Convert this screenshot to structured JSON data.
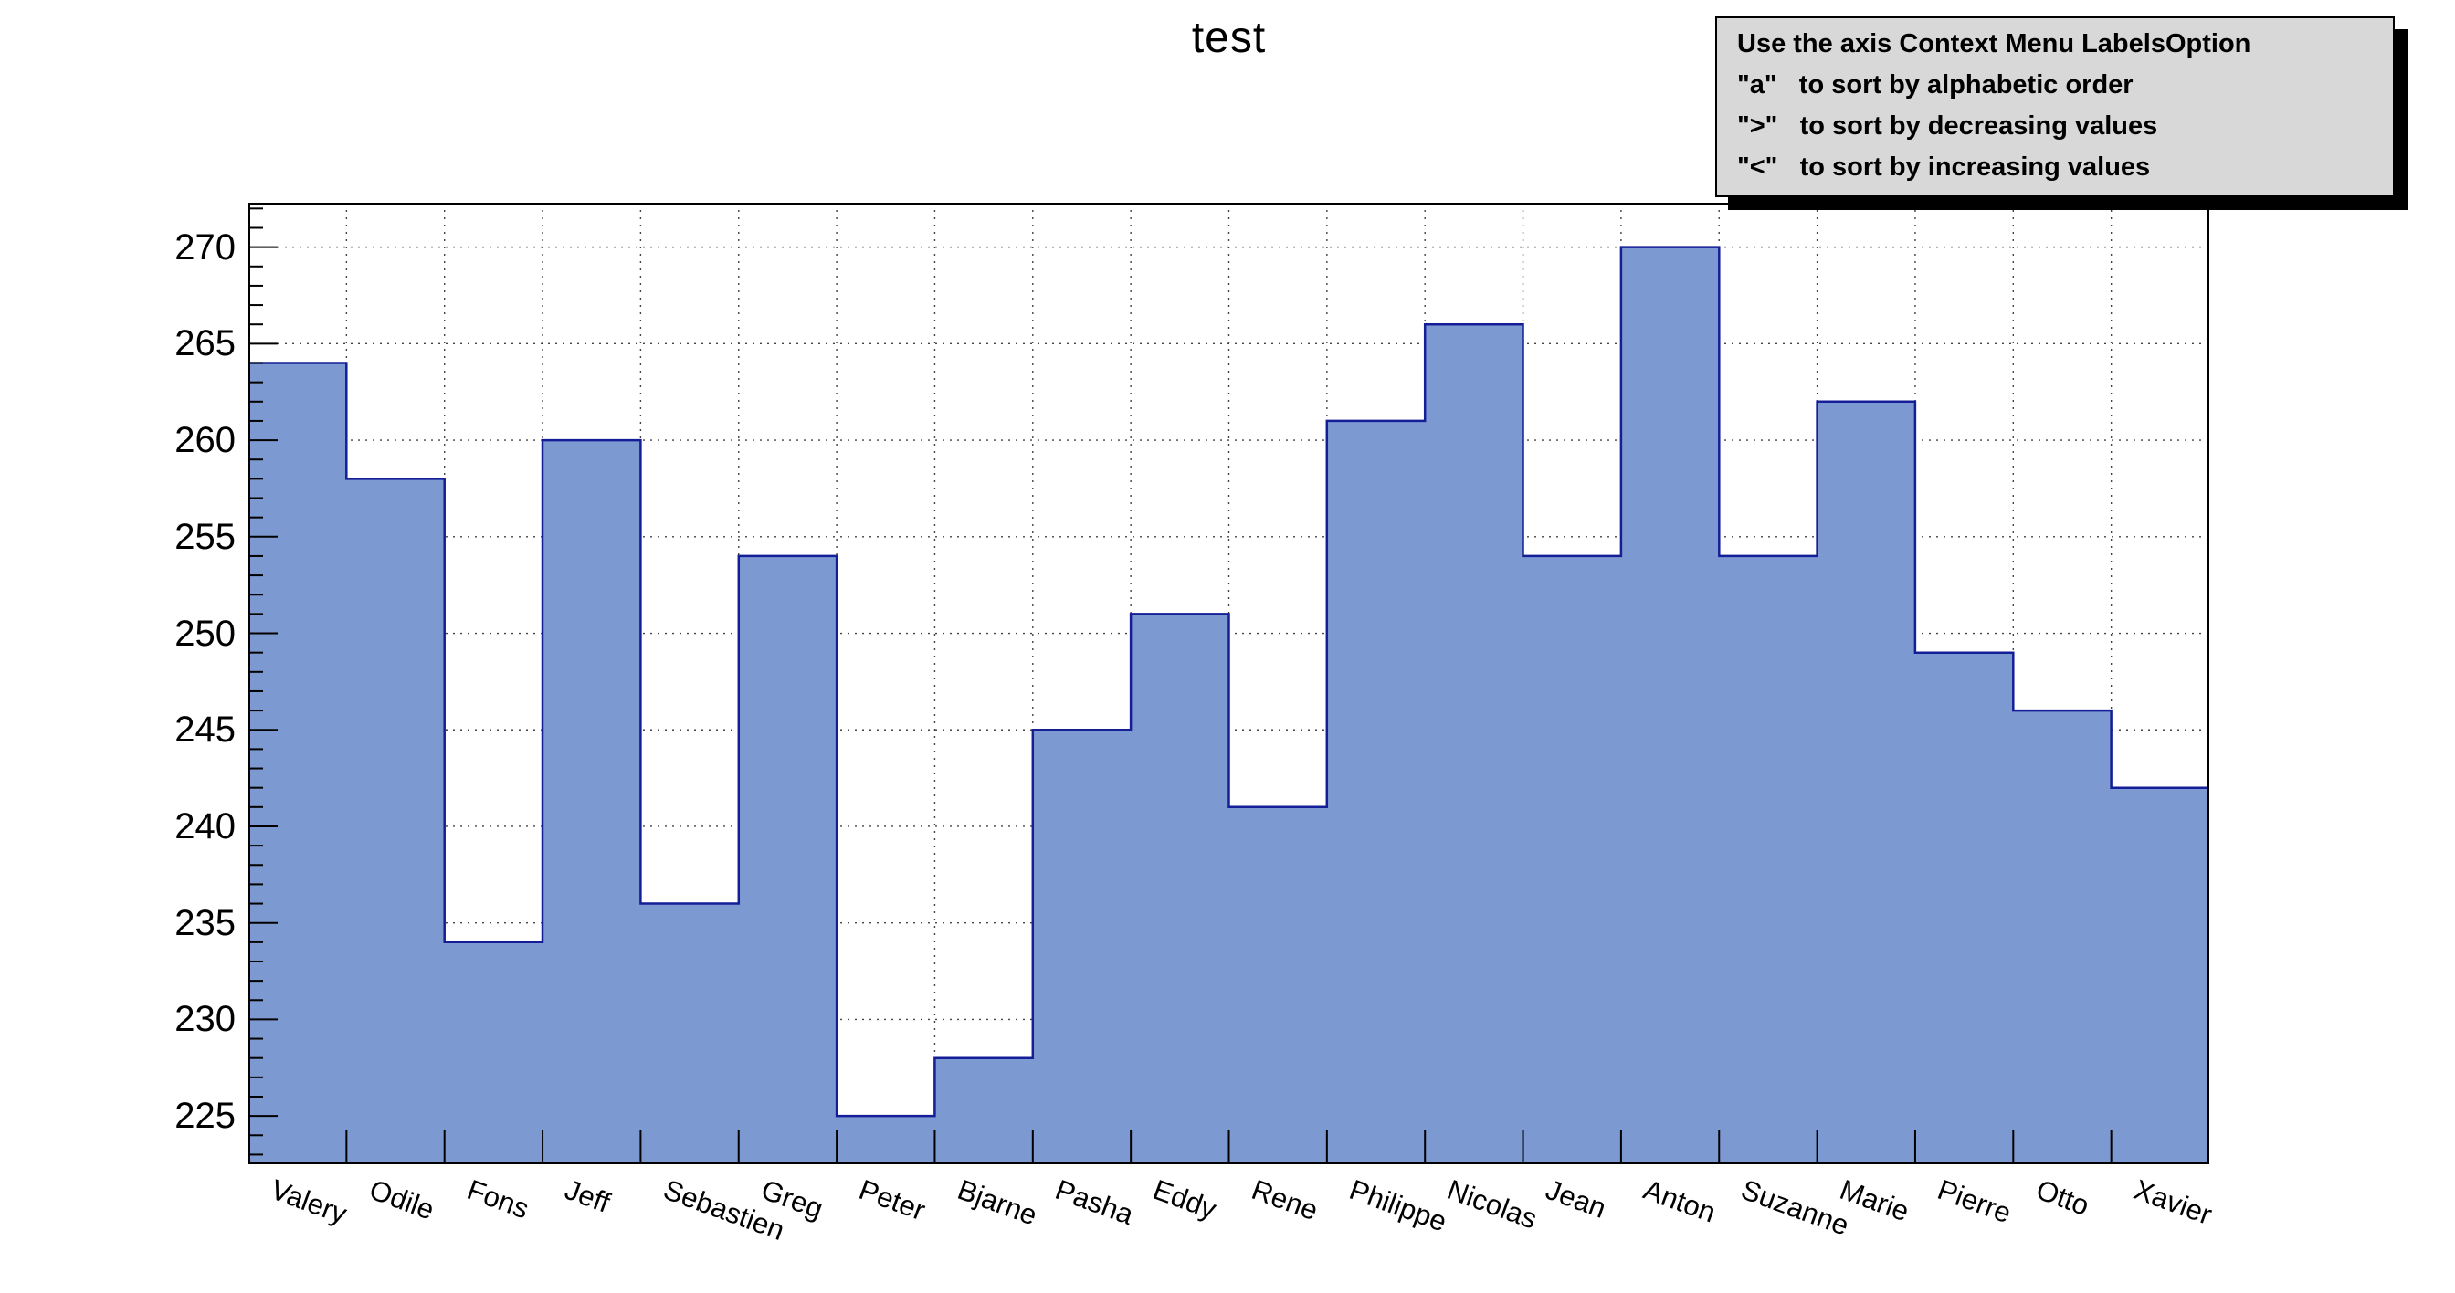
{
  "title": "test",
  "pave": {
    "bg_color": "#d8d8d8",
    "shadow_color": "#000000",
    "lines": [
      "Use the axis Context Menu LabelsOption",
      "\"a\"   to sort by alphabetic order",
      "\">\"   to sort by decreasing values",
      "\"<\"   to sort by increasing values"
    ]
  },
  "chart_data": {
    "type": "bar",
    "style": "histogram-steps",
    "title": "test",
    "categories": [
      "Valery",
      "Odile",
      "Fons",
      "Jeff",
      "Sebastien",
      "Greg",
      "Peter",
      "Bjarne",
      "Pasha",
      "Eddy",
      "Rene",
      "Philippe",
      "Nicolas",
      "Jean",
      "Anton",
      "Suzanne",
      "Marie",
      "Pierre",
      "Otto",
      "Xavier"
    ],
    "values": [
      264,
      258,
      234,
      260,
      236,
      254,
      225,
      228,
      245,
      251,
      241,
      261,
      266,
      254,
      270,
      254,
      262,
      249,
      246,
      242
    ],
    "xlabel": "",
    "ylabel": "",
    "ylim": [
      222.5,
      272.3
    ],
    "yticks": [
      225,
      230,
      235,
      240,
      245,
      250,
      255,
      260,
      265,
      270
    ],
    "minor_tick_step": 1,
    "grid": true,
    "grid_color": "#444444",
    "bar_fill": "#7d99d1",
    "bar_stroke": "#141e96",
    "frame_color": "#000000",
    "x_label_rotation_deg": 20,
    "legend_position": "none"
  }
}
